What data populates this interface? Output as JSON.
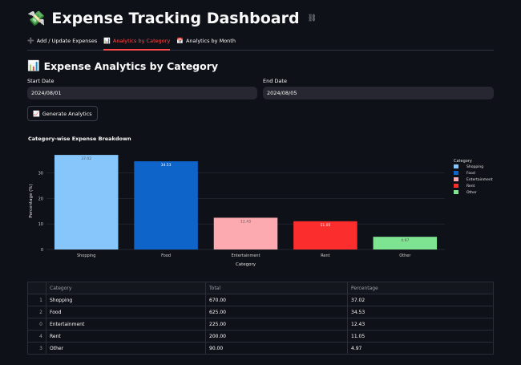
{
  "app": {
    "title": "Expense Tracking Dashboard"
  },
  "tabs": [
    {
      "label": "Add / Update Expenses",
      "icon": "plus-icon"
    },
    {
      "label": "Analytics by Category",
      "icon": "bar-chart-icon"
    },
    {
      "label": "Analytics by Month",
      "icon": "calendar-icon"
    }
  ],
  "active_tab": 1,
  "section": {
    "title": "Expense Analytics by Category"
  },
  "start_date": {
    "label": "Start Date",
    "value": "2024/08/01"
  },
  "end_date": {
    "label": "End Date",
    "value": "2024/08/05"
  },
  "generate_button": {
    "label": "Generate Analytics",
    "icon": "chart-icon"
  },
  "chart_data": {
    "type": "bar",
    "title": "Category-wise Expense Breakdown",
    "categories": [
      "Shopping",
      "Food",
      "Entertainment",
      "Rent",
      "Other"
    ],
    "values": [
      37.02,
      34.53,
      12.43,
      11.05,
      4.97
    ],
    "data_labels": [
      "37.02",
      "34.53",
      "12.43",
      "11.05",
      "4.97"
    ],
    "colors": [
      "#87c6fa",
      "#0e64c8",
      "#fcaaaf",
      "#fb2d2d",
      "#7ee491"
    ],
    "label_colors": [
      "#555555",
      "#ffffff",
      "#555555",
      "#ffffff",
      "#555555"
    ],
    "xlabel": "Category",
    "ylabel": "Percentage (%)",
    "ylim": [
      0,
      38
    ],
    "yticks": [
      0,
      10,
      20,
      30
    ],
    "legend_title": "Category",
    "legend_position": "right",
    "grid": true
  },
  "table": {
    "columns": [
      "Category",
      "Total",
      "Percentage"
    ],
    "rows": [
      {
        "index": "1",
        "category": "Shopping",
        "total": "670.00",
        "percentage": "37.02"
      },
      {
        "index": "2",
        "category": "Food",
        "total": "625.00",
        "percentage": "34.53"
      },
      {
        "index": "0",
        "category": "Entertainment",
        "total": "225.00",
        "percentage": "12.43"
      },
      {
        "index": "4",
        "category": "Rent",
        "total": "200.00",
        "percentage": "11.05"
      },
      {
        "index": "3",
        "category": "Other",
        "total": "90.00",
        "percentage": "4.97"
      }
    ]
  }
}
